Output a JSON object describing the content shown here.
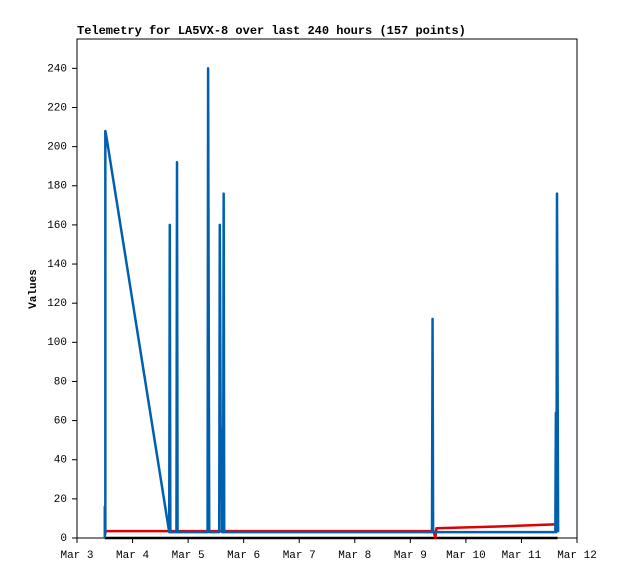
{
  "chart_data": {
    "type": "line",
    "title": "Telemetry for LA5VX-8 over last 240 hours (157 points)",
    "y_label": "Values",
    "xlim": [
      3,
      12
    ],
    "xticks": [
      {
        "value": 3,
        "label": "Mar 3"
      },
      {
        "value": 4,
        "label": "Mar 4"
      },
      {
        "value": 5,
        "label": "Mar 5"
      },
      {
        "value": 6,
        "label": "Mar 6"
      },
      {
        "value": 7,
        "label": "Mar 7"
      },
      {
        "value": 8,
        "label": "Mar 8"
      },
      {
        "value": 9,
        "label": "Mar 9"
      },
      {
        "value": 10,
        "label": "Mar 10"
      },
      {
        "value": 11,
        "label": "Mar 11"
      },
      {
        "value": 12,
        "label": "Mar 12"
      }
    ],
    "ylim": [
      0,
      255
    ],
    "yticks": [
      0,
      20,
      40,
      60,
      80,
      100,
      120,
      140,
      160,
      180,
      200,
      220,
      240
    ],
    "series": [
      {
        "color": "#000000",
        "x": [
          3.5,
          11.65
        ],
        "values": [
          0,
          0
        ]
      },
      {
        "color": "#e00000",
        "x": [
          3.5,
          9.42,
          9.45,
          9.47,
          10.5,
          11.65
        ],
        "values": [
          3.5,
          3.5,
          0,
          5,
          5.8,
          7
        ]
      },
      {
        "color": "#0060b0",
        "x": [
          3.5,
          3.5,
          3.51,
          3.51,
          3.53,
          4.66,
          4.67,
          4.68,
          4.79,
          4.8,
          4.81,
          5.35,
          5.36,
          5.38,
          5.56,
          5.57,
          5.58,
          5.59,
          5.6,
          5.61,
          5.63,
          5.64,
          5.65,
          9.39,
          9.4,
          9.41,
          11.61,
          11.62,
          11.63,
          11.64,
          11.66
        ],
        "values": [
          0,
          16,
          2,
          208,
          205,
          3,
          160,
          3,
          3,
          192,
          3,
          3,
          240,
          3,
          3,
          160,
          96,
          20,
          56,
          3,
          3,
          176,
          3,
          3,
          112,
          3,
          3,
          64,
          3,
          176,
          3
        ]
      }
    ]
  }
}
